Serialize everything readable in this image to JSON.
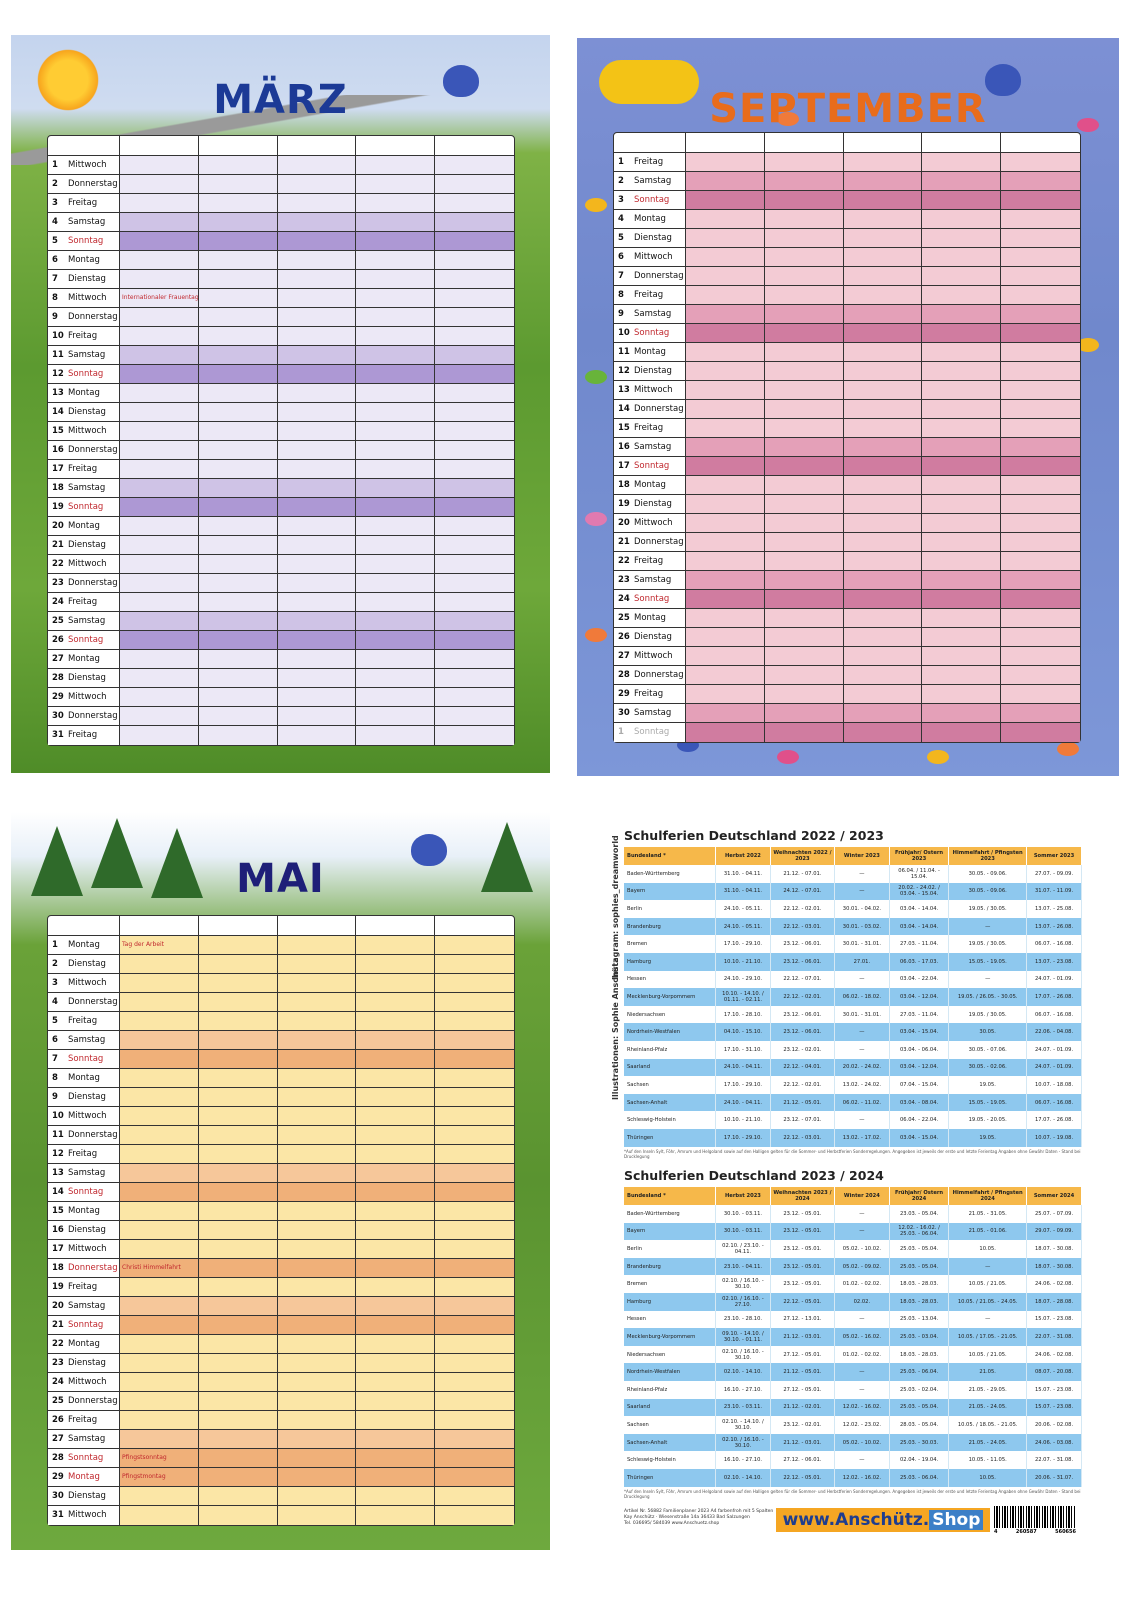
{
  "calendars": {
    "maerz": {
      "title": "MÄRZ",
      "rows": [
        {
          "n": "1",
          "d": "Mittwoch",
          "t": "w"
        },
        {
          "n": "2",
          "d": "Donnerstag",
          "t": "w"
        },
        {
          "n": "3",
          "d": "Freitag",
          "t": "w"
        },
        {
          "n": "4",
          "d": "Samstag",
          "t": "sa"
        },
        {
          "n": "5",
          "d": "Sonntag",
          "t": "so"
        },
        {
          "n": "6",
          "d": "Montag",
          "t": "w"
        },
        {
          "n": "7",
          "d": "Dienstag",
          "t": "w"
        },
        {
          "n": "8",
          "d": "Mittwoch",
          "t": "w",
          "note": "Internationaler Frauentag"
        },
        {
          "n": "9",
          "d": "Donnerstag",
          "t": "w"
        },
        {
          "n": "10",
          "d": "Freitag",
          "t": "w"
        },
        {
          "n": "11",
          "d": "Samstag",
          "t": "sa"
        },
        {
          "n": "12",
          "d": "Sonntag",
          "t": "so"
        },
        {
          "n": "13",
          "d": "Montag",
          "t": "w"
        },
        {
          "n": "14",
          "d": "Dienstag",
          "t": "w"
        },
        {
          "n": "15",
          "d": "Mittwoch",
          "t": "w"
        },
        {
          "n": "16",
          "d": "Donnerstag",
          "t": "w"
        },
        {
          "n": "17",
          "d": "Freitag",
          "t": "w"
        },
        {
          "n": "18",
          "d": "Samstag",
          "t": "sa"
        },
        {
          "n": "19",
          "d": "Sonntag",
          "t": "so"
        },
        {
          "n": "20",
          "d": "Montag",
          "t": "w"
        },
        {
          "n": "21",
          "d": "Dienstag",
          "t": "w"
        },
        {
          "n": "22",
          "d": "Mittwoch",
          "t": "w"
        },
        {
          "n": "23",
          "d": "Donnerstag",
          "t": "w"
        },
        {
          "n": "24",
          "d": "Freitag",
          "t": "w"
        },
        {
          "n": "25",
          "d": "Samstag",
          "t": "sa"
        },
        {
          "n": "26",
          "d": "Sonntag",
          "t": "so"
        },
        {
          "n": "27",
          "d": "Montag",
          "t": "w"
        },
        {
          "n": "28",
          "d": "Dienstag",
          "t": "w"
        },
        {
          "n": "29",
          "d": "Mittwoch",
          "t": "w"
        },
        {
          "n": "30",
          "d": "Donnerstag",
          "t": "w"
        },
        {
          "n": "31",
          "d": "Freitag",
          "t": "w"
        }
      ]
    },
    "september": {
      "title": "SEPTEMBER",
      "rows": [
        {
          "n": "1",
          "d": "Freitag",
          "t": "w"
        },
        {
          "n": "2",
          "d": "Samstag",
          "t": "sa"
        },
        {
          "n": "3",
          "d": "Sonntag",
          "t": "so"
        },
        {
          "n": "4",
          "d": "Montag",
          "t": "w"
        },
        {
          "n": "5",
          "d": "Dienstag",
          "t": "w"
        },
        {
          "n": "6",
          "d": "Mittwoch",
          "t": "w"
        },
        {
          "n": "7",
          "d": "Donnerstag",
          "t": "w"
        },
        {
          "n": "8",
          "d": "Freitag",
          "t": "w"
        },
        {
          "n": "9",
          "d": "Samstag",
          "t": "sa"
        },
        {
          "n": "10",
          "d": "Sonntag",
          "t": "so"
        },
        {
          "n": "11",
          "d": "Montag",
          "t": "w"
        },
        {
          "n": "12",
          "d": "Dienstag",
          "t": "w"
        },
        {
          "n": "13",
          "d": "Mittwoch",
          "t": "w"
        },
        {
          "n": "14",
          "d": "Donnerstag",
          "t": "w"
        },
        {
          "n": "15",
          "d": "Freitag",
          "t": "w"
        },
        {
          "n": "16",
          "d": "Samstag",
          "t": "sa"
        },
        {
          "n": "17",
          "d": "Sonntag",
          "t": "so"
        },
        {
          "n": "18",
          "d": "Montag",
          "t": "w"
        },
        {
          "n": "19",
          "d": "Dienstag",
          "t": "w"
        },
        {
          "n": "20",
          "d": "Mittwoch",
          "t": "w"
        },
        {
          "n": "21",
          "d": "Donnerstag",
          "t": "w"
        },
        {
          "n": "22",
          "d": "Freitag",
          "t": "w"
        },
        {
          "n": "23",
          "d": "Samstag",
          "t": "sa"
        },
        {
          "n": "24",
          "d": "Sonntag",
          "t": "so"
        },
        {
          "n": "25",
          "d": "Montag",
          "t": "w"
        },
        {
          "n": "26",
          "d": "Dienstag",
          "t": "w"
        },
        {
          "n": "27",
          "d": "Mittwoch",
          "t": "w"
        },
        {
          "n": "28",
          "d": "Donnerstag",
          "t": "w"
        },
        {
          "n": "29",
          "d": "Freitag",
          "t": "w"
        },
        {
          "n": "30",
          "d": "Samstag",
          "t": "sa"
        },
        {
          "n": "1",
          "d": "Sonntag",
          "t": "so grey"
        }
      ]
    },
    "mai": {
      "title": "MAI",
      "rows": [
        {
          "n": "1",
          "d": "Montag",
          "t": "w",
          "note": "Tag der Arbeit"
        },
        {
          "n": "2",
          "d": "Dienstag",
          "t": "w"
        },
        {
          "n": "3",
          "d": "Mittwoch",
          "t": "w"
        },
        {
          "n": "4",
          "d": "Donnerstag",
          "t": "w"
        },
        {
          "n": "5",
          "d": "Freitag",
          "t": "w"
        },
        {
          "n": "6",
          "d": "Samstag",
          "t": "sa"
        },
        {
          "n": "7",
          "d": "Sonntag",
          "t": "so"
        },
        {
          "n": "8",
          "d": "Montag",
          "t": "w"
        },
        {
          "n": "9",
          "d": "Dienstag",
          "t": "w"
        },
        {
          "n": "10",
          "d": "Mittwoch",
          "t": "w"
        },
        {
          "n": "11",
          "d": "Donnerstag",
          "t": "w"
        },
        {
          "n": "12",
          "d": "Freitag",
          "t": "w"
        },
        {
          "n": "13",
          "d": "Samstag",
          "t": "sa"
        },
        {
          "n": "14",
          "d": "Sonntag",
          "t": "so"
        },
        {
          "n": "15",
          "d": "Montag",
          "t": "w"
        },
        {
          "n": "16",
          "d": "Dienstag",
          "t": "w"
        },
        {
          "n": "17",
          "d": "Mittwoch",
          "t": "w"
        },
        {
          "n": "18",
          "d": "Donnerstag",
          "t": "so-bg",
          "note": "Christi Himmelfahrt"
        },
        {
          "n": "19",
          "d": "Freitag",
          "t": "w"
        },
        {
          "n": "20",
          "d": "Samstag",
          "t": "sa"
        },
        {
          "n": "21",
          "d": "Sonntag",
          "t": "so"
        },
        {
          "n": "22",
          "d": "Montag",
          "t": "w"
        },
        {
          "n": "23",
          "d": "Dienstag",
          "t": "w"
        },
        {
          "n": "24",
          "d": "Mittwoch",
          "t": "w"
        },
        {
          "n": "25",
          "d": "Donnerstag",
          "t": "w"
        },
        {
          "n": "26",
          "d": "Freitag",
          "t": "w"
        },
        {
          "n": "27",
          "d": "Samstag",
          "t": "sa"
        },
        {
          "n": "28",
          "d": "Sonntag",
          "t": "so",
          "note": "Pfingstsonntag"
        },
        {
          "n": "29",
          "d": "Montag",
          "t": "so-bg",
          "note": "Pfingstmontag"
        },
        {
          "n": "30",
          "d": "Dienstag",
          "t": "w"
        },
        {
          "n": "31",
          "d": "Mittwoch",
          "t": "w"
        }
      ]
    }
  },
  "ferien": [
    {
      "title": "Schulferien Deutschland  2022 / 2023",
      "headers": [
        "Bundesland *",
        "Herbst 2022",
        "Weihnachten 2022 / 2023",
        "Winter 2023",
        "Frühjahr/ Ostern 2023",
        "Himmelfahrt / Pfingsten 2023",
        "Sommer 2023"
      ],
      "rows": [
        [
          "Baden-Württemberg",
          "31.10. - 04.11.",
          "21.12. - 07.01.",
          "—",
          "06.04. / 11.04. - 15.04.",
          "30.05. - 09.06.",
          "27.07. - 09.09."
        ],
        [
          "Bayern",
          "31.10. - 04.11.",
          "24.12. - 07.01.",
          "—",
          "20.02. - 24.02. / 03.04. - 15.04.",
          "30.05. - 09.06.",
          "31.07. - 11.09."
        ],
        [
          "Berlin",
          "24.10. - 05.11.",
          "22.12. - 02.01.",
          "30.01. - 04.02.",
          "03.04. - 14.04.",
          "19.05. / 30.05.",
          "13.07. - 25.08."
        ],
        [
          "Brandenburg",
          "24.10. - 05.11.",
          "22.12. - 03.01.",
          "30.01. - 03.02.",
          "03.04. - 14.04.",
          "—",
          "13.07. - 26.08."
        ],
        [
          "Bremen",
          "17.10. - 29.10.",
          "23.12. - 06.01.",
          "30.01. - 31.01.",
          "27.03. - 11.04.",
          "19.05. / 30.05.",
          "06.07. - 16.08."
        ],
        [
          "Hamburg",
          "10.10. - 21.10.",
          "23.12. - 06.01.",
          "27.01.",
          "06.03. - 17.03.",
          "15.05. - 19.05.",
          "13.07. - 23.08."
        ],
        [
          "Hessen",
          "24.10. - 29.10.",
          "22.12. - 07.01.",
          "—",
          "03.04. - 22.04.",
          "—",
          "24.07. - 01.09."
        ],
        [
          "Mecklenburg-Vorpommern",
          "10.10. - 14.10. / 01.11. - 02.11.",
          "22.12. - 02.01.",
          "06.02. - 18.02.",
          "03.04. - 12.04.",
          "19.05. / 26.05. - 30.05.",
          "17.07. - 26.08."
        ],
        [
          "Niedersachsen",
          "17.10. - 28.10.",
          "23.12. - 06.01.",
          "30.01. - 31.01.",
          "27.03. - 11.04.",
          "19.05. / 30.05.",
          "06.07. - 16.08."
        ],
        [
          "Nordrhein-Westfalen",
          "04.10. - 15.10.",
          "23.12. - 06.01.",
          "—",
          "03.04. - 15.04.",
          "30.05.",
          "22.06. - 04.08."
        ],
        [
          "Rheinland-Pfalz",
          "17.10. - 31.10.",
          "23.12. - 02.01.",
          "—",
          "03.04. - 06.04.",
          "30.05. - 07.06.",
          "24.07. - 01.09."
        ],
        [
          "Saarland",
          "24.10. - 04.11.",
          "22.12. - 04.01.",
          "20.02. - 24.02.",
          "03.04. - 12.04.",
          "30.05. - 02.06.",
          "24.07. - 01.09."
        ],
        [
          "Sachsen",
          "17.10. - 29.10.",
          "22.12. - 02.01.",
          "13.02. - 24.02.",
          "07.04. - 15.04.",
          "19.05.",
          "10.07. - 18.08."
        ],
        [
          "Sachsen-Anhalt",
          "24.10. - 04.11.",
          "21.12. - 05.01.",
          "06.02. - 11.02.",
          "03.04. - 08.04.",
          "15.05. - 19.05.",
          "06.07. - 16.08."
        ],
        [
          "Schleswig-Holstein",
          "10.10. - 21.10.",
          "23.12. - 07.01.",
          "—",
          "06.04. - 22.04.",
          "19.05. - 20.05.",
          "17.07. - 26.08."
        ],
        [
          "Thüringen",
          "17.10. - 29.10.",
          "22.12. - 03.01.",
          "13.02. - 17.02.",
          "03.04. - 15.04.",
          "19.05.",
          "10.07. - 19.08."
        ]
      ],
      "footnote": "*Auf den Inseln Sylt, Föhr, Amrum und Helgoland sowie auf den Halligen gelten für die Sommer- und Herbstferien Sonderregelungen.   Angegeben ist jeweils der erste und letzte Ferientag   Angaben ohne Gewähr   Daten - Stand bei Drucklegung"
    },
    {
      "title": "Schulferien Deutschland  2023 / 2024",
      "headers": [
        "Bundesland *",
        "Herbst 2023",
        "Weihnachten 2023 / 2024",
        "Winter 2024",
        "Frühjahr/ Ostern 2024",
        "Himmelfahrt / Pfingsten 2024",
        "Sommer 2024"
      ],
      "rows": [
        [
          "Baden-Württemberg",
          "30.10. - 03.11.",
          "23.12. - 05.01.",
          "—",
          "23.03. - 05.04.",
          "21.05. - 31.05.",
          "25.07. - 07.09."
        ],
        [
          "Bayern",
          "30.10. - 03.11.",
          "23.12. - 05.01.",
          "—",
          "12.02. - 16.02. / 25.03. - 06.04.",
          "21.05. - 01.06.",
          "29.07. - 09.09."
        ],
        [
          "Berlin",
          "02.10. / 23.10. - 04.11.",
          "23.12. - 05.01.",
          "05.02. - 10.02.",
          "25.03. - 05.04.",
          "10.05.",
          "18.07. - 30.08."
        ],
        [
          "Brandenburg",
          "23.10. - 04.11.",
          "23.12. - 05.01.",
          "05.02. - 09.02.",
          "25.03. - 05.04.",
          "—",
          "18.07. - 30.08."
        ],
        [
          "Bremen",
          "02.10. / 16.10. - 30.10.",
          "23.12. - 05.01.",
          "01.02. - 02.02.",
          "18.03. - 28.03.",
          "10.05. / 21.05.",
          "24.06. - 02.08."
        ],
        [
          "Hamburg",
          "02.10. / 16.10. - 27.10.",
          "22.12. - 05.01.",
          "02.02.",
          "18.03. - 28.03.",
          "10.05. / 21.05. - 24.05.",
          "18.07. - 28.08."
        ],
        [
          "Hessen",
          "23.10. - 28.10.",
          "27.12. - 13.01.",
          "—",
          "25.03. - 13.04.",
          "—",
          "15.07. - 23.08."
        ],
        [
          "Mecklenburg-Vorpommern",
          "09.10. - 14.10. / 30.10. - 01.11.",
          "21.12. - 03.01.",
          "05.02. - 16.02.",
          "25.03. - 03.04.",
          "10.05. / 17.05. - 21.05.",
          "22.07. - 31.08."
        ],
        [
          "Niedersachsen",
          "02.10. / 16.10. - 30.10.",
          "27.12. - 05.01.",
          "01.02. - 02.02.",
          "18.03. - 28.03.",
          "10.05. / 21.05.",
          "24.06. - 02.08."
        ],
        [
          "Nordrhein-Westfalen",
          "02.10. - 14.10.",
          "21.12. - 05.01.",
          "—",
          "25.03. - 06.04.",
          "21.05.",
          "08.07. - 20.08."
        ],
        [
          "Rheinland-Pfalz",
          "16.10. - 27.10.",
          "27.12. - 05.01.",
          "—",
          "25.03. - 02.04.",
          "21.05. - 29.05.",
          "15.07. - 23.08."
        ],
        [
          "Saarland",
          "23.10. - 03.11.",
          "21.12. - 02.01.",
          "12.02. - 16.02.",
          "25.03. - 05.04.",
          "21.05. - 24.05.",
          "15.07. - 23.08."
        ],
        [
          "Sachsen",
          "02.10. - 14.10. / 30.10.",
          "23.12. - 02.01.",
          "12.02. - 23.02.",
          "28.03. - 05.04.",
          "10.05. / 18.05. - 21.05.",
          "20.06. - 02.08."
        ],
        [
          "Sachsen-Anhalt",
          "02.10. / 16.10. - 30.10.",
          "21.12. - 03.01.",
          "05.02. - 10.02.",
          "25.03. - 30.03.",
          "21.05. - 24.05.",
          "24.06. - 03.08."
        ],
        [
          "Schleswig-Holstein",
          "16.10. - 27.10.",
          "27.12. - 06.01.",
          "—",
          "02.04. - 19.04.",
          "10.05. - 11.05.",
          "22.07. - 31.08."
        ],
        [
          "Thüringen",
          "02.10. - 14.10.",
          "22.12. - 05.01.",
          "12.02. - 16.02.",
          "25.03. - 06.04.",
          "10.05.",
          "20.06. - 31.07."
        ]
      ],
      "footnote": "*Auf den Inseln Sylt, Föhr, Amrum und Helgoland sowie auf den Halligen gelten für die Sommer- und Herbstferien Sonderregelungen.   Angegeben ist jeweils der erste und letzte Ferientag   Angaben ohne Gewähr   Daten - Stand bei Drucklegung"
    }
  ],
  "side": {
    "instagram": "Instagram: sophies_dreamworld",
    "illustration": "Illustrationen: Sophie Anschütz"
  },
  "footer": {
    "info_lines": [
      "Artikel Nr. 56882  Familienplaner 2023 A4 farbenfroh mit 5 Spalten",
      "Kay Anschütz · Wiesenstraße 14a 36433 Bad Salzungen",
      "Tel. 036695/ 584039    www.Anschuetz.shop"
    ],
    "logo_main": "www.Anschütz.",
    "logo_tld": "Shop",
    "barcode_digits": [
      "4",
      "260587",
      "560656"
    ]
  }
}
